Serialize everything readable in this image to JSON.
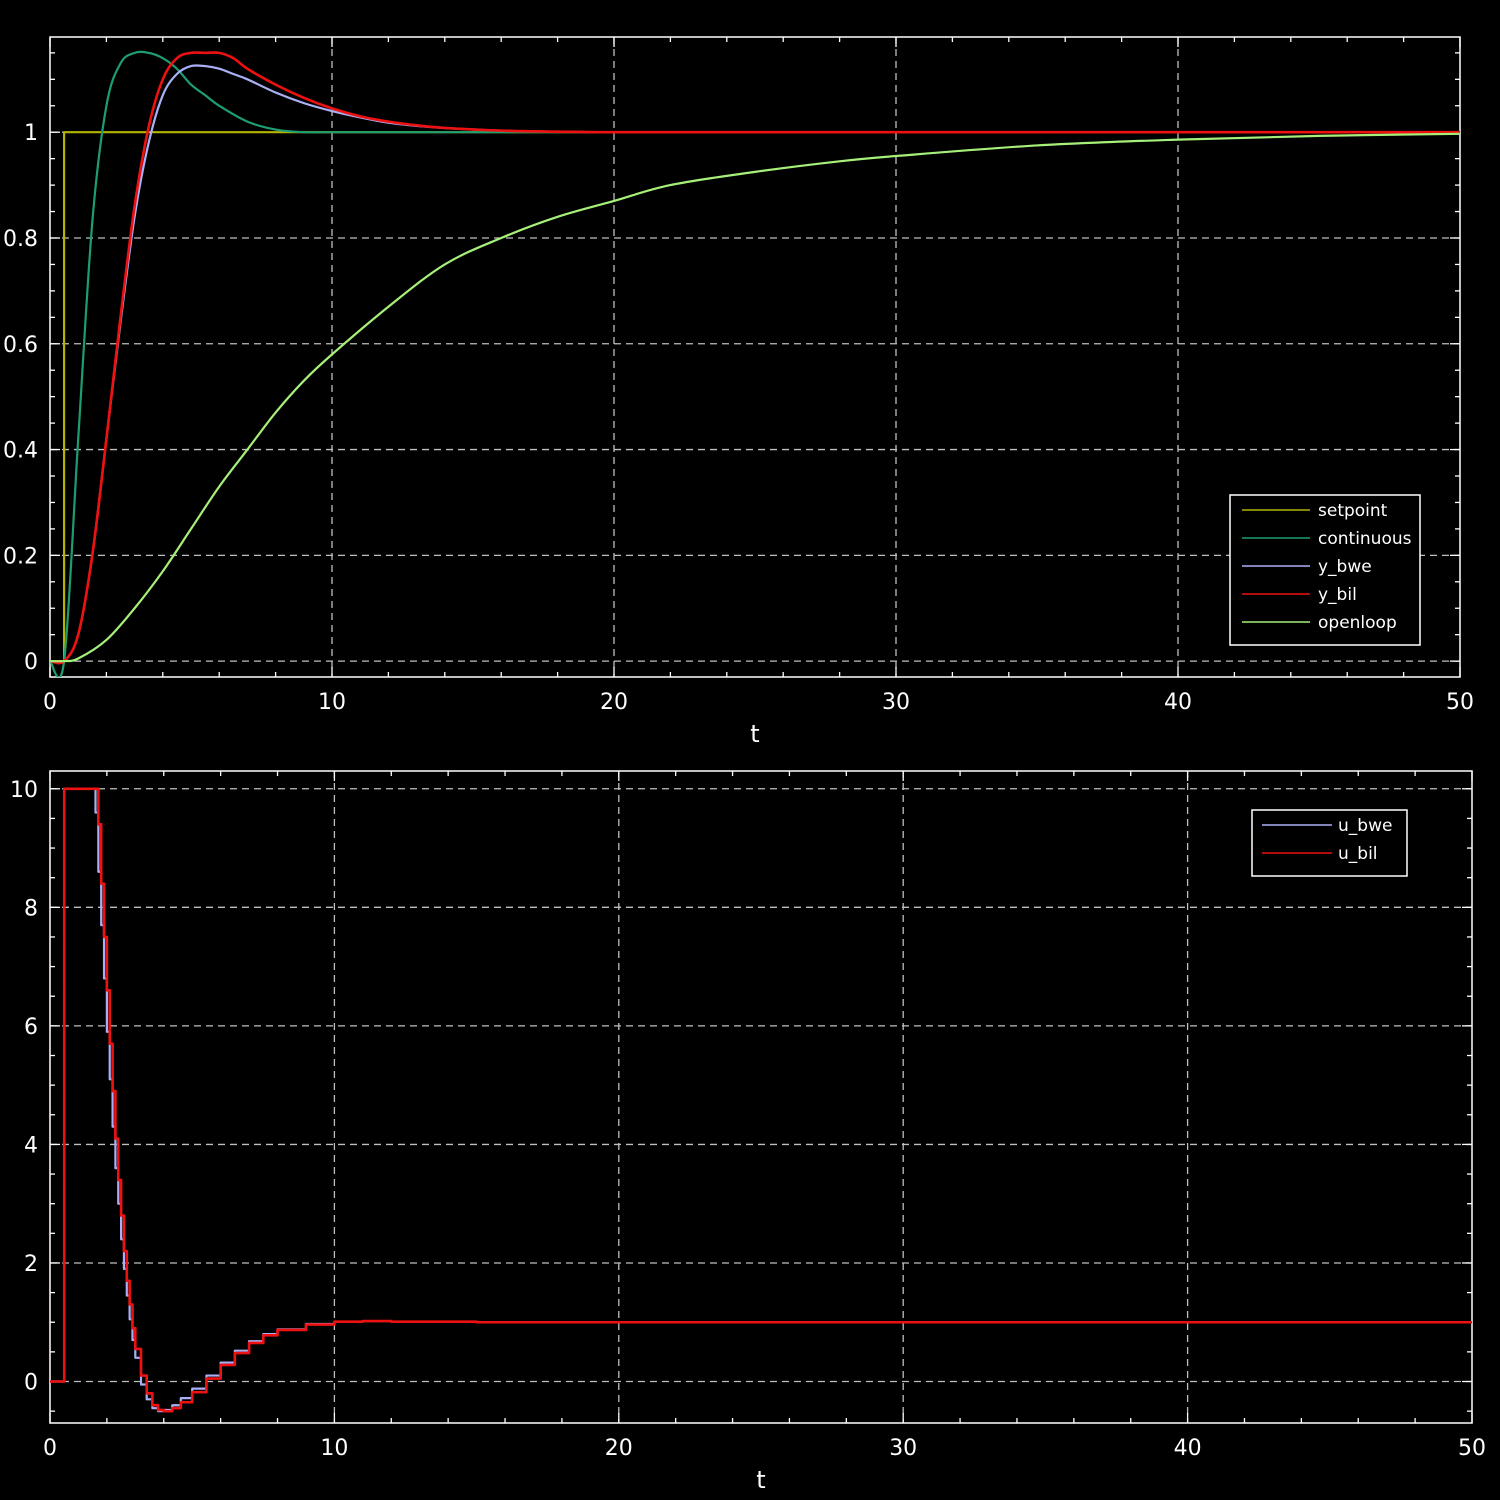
{
  "figure": {
    "background": "#000000",
    "axes_color": "#ffffff",
    "grid_color": "#bfbfbf"
  },
  "chart_data": [
    {
      "type": "line",
      "xlabel": "t",
      "ylabel": "",
      "xlim": [
        0,
        50
      ],
      "ylim": [
        -0.03,
        1.18
      ],
      "xticks": [
        0,
        10,
        20,
        30,
        40,
        50
      ],
      "xtick_labels": [
        "0",
        "10",
        "20",
        "30",
        "40",
        "50"
      ],
      "yticks": [
        0,
        0.2,
        0.4,
        0.6,
        0.8,
        1
      ],
      "ytick_labels": [
        "0",
        "0.2",
        "0.4",
        "0.6",
        "0.8",
        "1"
      ],
      "grid": true,
      "legend": "bottom-right",
      "series": [
        {
          "name": "setpoint",
          "color": "#b5b400",
          "step_time": 0.5,
          "x": [
            0,
            0.5,
            0.5,
            50
          ],
          "y": [
            0,
            0,
            1,
            1
          ]
        },
        {
          "name": "continuous",
          "color": "#1e9e70",
          "x": [
            0,
            0.5,
            1.0,
            1.5,
            2.0,
            2.5,
            3.0,
            3.5,
            4.0,
            4.5,
            5.0,
            5.5,
            6.0,
            7.0,
            8.0,
            9.0,
            10.0,
            12.0,
            15.0,
            20.0,
            30.0,
            50.0
          ],
          "y": [
            0,
            0,
            0.42,
            0.83,
            1.05,
            1.13,
            1.15,
            1.15,
            1.14,
            1.12,
            1.09,
            1.07,
            1.05,
            1.02,
            1.005,
            1.0,
            1.0,
            1.0,
            1.0,
            1.0,
            1.0,
            1.0
          ]
        },
        {
          "name": "y_bwe",
          "color": "#aab0f5",
          "x": [
            0,
            0.5,
            1.0,
            1.5,
            2.0,
            2.5,
            3.0,
            3.5,
            4.0,
            4.5,
            5.0,
            5.5,
            6.0,
            6.5,
            7.0,
            8.0,
            9.0,
            10.0,
            11.0,
            12.0,
            13.0,
            14.0,
            16.0,
            18.0,
            20.0,
            25.0,
            30.0,
            40.0,
            50.0
          ],
          "y": [
            0,
            0,
            0.05,
            0.2,
            0.42,
            0.64,
            0.84,
            0.98,
            1.07,
            1.11,
            1.125,
            1.125,
            1.12,
            1.11,
            1.1,
            1.075,
            1.055,
            1.04,
            1.028,
            1.018,
            1.012,
            1.008,
            1.003,
            1.001,
            1.0,
            1.0,
            1.0,
            1.0,
            1.0
          ]
        },
        {
          "name": "y_bil",
          "color": "#ee1111",
          "x": [
            0,
            0.5,
            1.0,
            1.5,
            2.0,
            2.5,
            3.0,
            3.5,
            4.0,
            4.5,
            5.0,
            5.5,
            6.0,
            6.5,
            7.0,
            8.0,
            9.0,
            10.0,
            11.0,
            12.0,
            13.0,
            14.0,
            16.0,
            18.0,
            20.0,
            25.0,
            30.0,
            40.0,
            50.0
          ],
          "y": [
            0,
            0,
            0.05,
            0.2,
            0.42,
            0.65,
            0.86,
            1.01,
            1.1,
            1.14,
            1.15,
            1.15,
            1.15,
            1.14,
            1.12,
            1.09,
            1.065,
            1.045,
            1.03,
            1.02,
            1.013,
            1.008,
            1.003,
            1.001,
            1.0,
            1.0,
            1.0,
            1.0,
            1.0
          ]
        },
        {
          "name": "openloop",
          "color": "#a6f07a",
          "x": [
            0,
            0.5,
            1.0,
            2.0,
            3.0,
            4.0,
            5.0,
            6.0,
            7.0,
            8.0,
            9.0,
            10.0,
            12.0,
            14.0,
            16.0,
            18.0,
            20.0,
            22.0,
            25.0,
            28.0,
            30.0,
            35.0,
            40.0,
            45.0,
            50.0
          ],
          "y": [
            0,
            0,
            0.005,
            0.04,
            0.1,
            0.17,
            0.25,
            0.33,
            0.4,
            0.47,
            0.53,
            0.58,
            0.67,
            0.75,
            0.8,
            0.84,
            0.87,
            0.9,
            0.925,
            0.945,
            0.955,
            0.975,
            0.986,
            0.993,
            0.997
          ]
        }
      ]
    },
    {
      "type": "line",
      "xlabel": "t",
      "ylabel": "",
      "xlim": [
        0,
        50
      ],
      "ylim": [
        -0.7,
        10.3
      ],
      "xticks": [
        0,
        10,
        20,
        30,
        40,
        50
      ],
      "xtick_labels": [
        "0",
        "10",
        "20",
        "30",
        "40",
        "50"
      ],
      "yticks": [
        0,
        2,
        4,
        6,
        8,
        10
      ],
      "ytick_labels": [
        "0",
        "2",
        "4",
        "6",
        "8",
        "10"
      ],
      "grid": true,
      "legend": "top-right",
      "series": [
        {
          "name": "u_bwe",
          "color": "#aab0f5",
          "step": true,
          "x": [
            0,
            0.5,
            0.5,
            1.5,
            1.6,
            1.7,
            1.8,
            1.9,
            2.0,
            2.1,
            2.2,
            2.3,
            2.4,
            2.5,
            2.6,
            2.7,
            2.8,
            2.9,
            3.0,
            3.2,
            3.4,
            3.6,
            3.8,
            4.0,
            4.3,
            4.6,
            5.0,
            5.5,
            6.0,
            6.5,
            7.0,
            7.5,
            8.0,
            9.0,
            10.0,
            11.0,
            12.0,
            15.0,
            50.0
          ],
          "y": [
            0,
            0,
            10,
            10,
            9.6,
            8.6,
            7.7,
            6.8,
            5.9,
            5.1,
            4.3,
            3.6,
            3.0,
            2.4,
            1.9,
            1.45,
            1.05,
            0.7,
            0.4,
            -0.05,
            -0.3,
            -0.45,
            -0.5,
            -0.48,
            -0.4,
            -0.28,
            -0.12,
            0.1,
            0.32,
            0.52,
            0.68,
            0.8,
            0.88,
            0.97,
            1.01,
            1.02,
            1.01,
            1.0,
            1.0
          ]
        },
        {
          "name": "u_bil",
          "color": "#ee1111",
          "step": true,
          "x": [
            0,
            0.5,
            0.5,
            1.5,
            1.6,
            1.7,
            1.8,
            1.9,
            2.0,
            2.1,
            2.2,
            2.3,
            2.4,
            2.5,
            2.6,
            2.7,
            2.8,
            2.9,
            3.0,
            3.2,
            3.4,
            3.6,
            3.8,
            4.0,
            4.3,
            4.6,
            5.0,
            5.5,
            6.0,
            6.5,
            7.0,
            7.5,
            8.0,
            9.0,
            10.0,
            11.0,
            12.0,
            15.0,
            50.0
          ],
          "y": [
            0,
            0,
            10,
            10,
            10,
            9.4,
            8.4,
            7.5,
            6.6,
            5.7,
            4.9,
            4.1,
            3.4,
            2.8,
            2.2,
            1.7,
            1.3,
            0.9,
            0.55,
            0.1,
            -0.2,
            -0.4,
            -0.48,
            -0.5,
            -0.45,
            -0.35,
            -0.18,
            0.05,
            0.28,
            0.48,
            0.65,
            0.78,
            0.87,
            0.96,
            1.01,
            1.02,
            1.01,
            1.0,
            1.0
          ]
        }
      ]
    }
  ]
}
